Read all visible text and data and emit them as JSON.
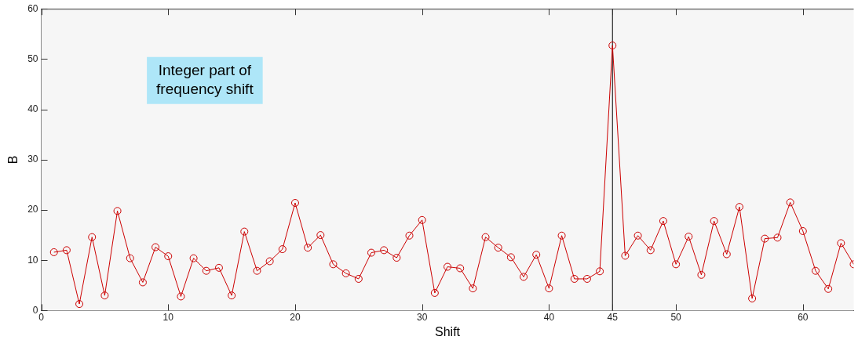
{
  "chart_data": {
    "type": "line",
    "xlabel": "Shift",
    "ylabel": "B",
    "annotations": [
      "Integer part of\nfrequency shift"
    ],
    "x": [
      1,
      2,
      3,
      4,
      5,
      6,
      7,
      8,
      9,
      10,
      11,
      12,
      13,
      14,
      15,
      16,
      17,
      18,
      19,
      20,
      21,
      22,
      23,
      24,
      25,
      26,
      27,
      28,
      29,
      30,
      31,
      32,
      33,
      34,
      35,
      36,
      37,
      38,
      39,
      40,
      41,
      42,
      43,
      44,
      45,
      46,
      47,
      48,
      49,
      50,
      51,
      52,
      53,
      54,
      55,
      56,
      57,
      58,
      59,
      60,
      61,
      62,
      63,
      64
    ],
    "series": [
      {
        "color": "#cc0000",
        "values": [
          11.6,
          12,
          1.3,
          14.6,
          3,
          19.8,
          10.4,
          5.6,
          12.6,
          10.8,
          2.8,
          10.4,
          7.9,
          8.5,
          3,
          15.7,
          7.9,
          9.8,
          12.2,
          21.4,
          12.5,
          15,
          9.2,
          7.4,
          6.3,
          11.5,
          12,
          10.5,
          14.9,
          18,
          3.5,
          8.7,
          8.4,
          4.4,
          14.6,
          12.5,
          10.6,
          6.7,
          11.1,
          4.4,
          14.9,
          6.3,
          6.3,
          7.8,
          52.7,
          10.9,
          14.9,
          12,
          17.8,
          9.2,
          14.7,
          7.1,
          17.8,
          11.2,
          20.6,
          2.4,
          14.3,
          14.5,
          21.5,
          15.8,
          7.9,
          4.3,
          13.4,
          9.2
        ]
      }
    ],
    "xlim": [
      0,
      64
    ],
    "xticks": [
      0,
      10,
      20,
      30,
      40,
      45,
      50,
      60
    ],
    "ylim": [
      0,
      60
    ],
    "yticks": [
      0,
      10,
      20,
      30,
      40,
      50,
      60
    ],
    "ref_lines": [
      {
        "axis": "x",
        "value": 45,
        "color": "#000000"
      }
    ],
    "marker": "circle",
    "line_style": "solid",
    "legend": false
  }
}
